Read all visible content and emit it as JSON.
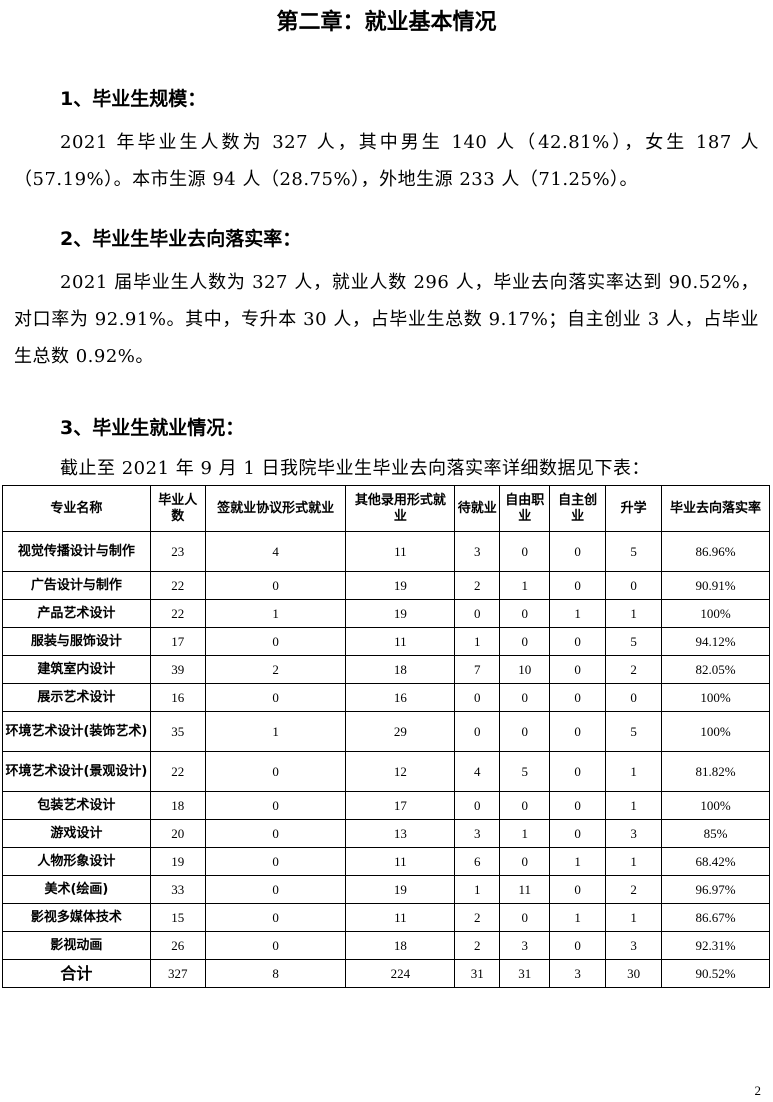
{
  "title": "第二章：就业基本情况",
  "sections": [
    {
      "heading": "1、毕业生规模：",
      "paragraph": "2021 年毕业生人数为 327 人，其中男生 140 人（42.81%），女生 187 人（57.19%）。本市生源 94 人（28.75%），外地生源 233 人（71.25%）。"
    },
    {
      "heading": "2、毕业生毕业去向落实率：",
      "paragraph": "2021 届毕业生人数为 327 人，就业人数 296 人，毕业去向落实率达到 90.52%，对口率为 92.91%。其中，专升本 30 人，占毕业生总数 9.17%；自主创业 3 人，占毕业生总数 0.92%。"
    },
    {
      "heading": "3、毕业生就业情况：",
      "paragraph": "截止至 2021 年 9 月 1 日我院毕业生毕业去向落实率详细数据见下表："
    }
  ],
  "table": {
    "headers": [
      "专业名称",
      "毕业人数",
      "签就业协议形式就业",
      "其他录用形式就业",
      "待就业",
      "自由职业",
      "自主创业",
      "升学",
      "毕业去向落实率"
    ],
    "rows": [
      [
        "视觉传播设计与制作",
        "23",
        "4",
        "11",
        "3",
        "0",
        "0",
        "5",
        "86.96%"
      ],
      [
        "广告设计与制作",
        "22",
        "0",
        "19",
        "2",
        "1",
        "0",
        "0",
        "90.91%"
      ],
      [
        "产品艺术设计",
        "22",
        "1",
        "19",
        "0",
        "0",
        "1",
        "1",
        "100%"
      ],
      [
        "服装与服饰设计",
        "17",
        "0",
        "11",
        "1",
        "0",
        "0",
        "5",
        "94.12%"
      ],
      [
        "建筑室内设计",
        "39",
        "2",
        "18",
        "7",
        "10",
        "0",
        "2",
        "82.05%"
      ],
      [
        "展示艺术设计",
        "16",
        "0",
        "16",
        "0",
        "0",
        "0",
        "0",
        "100%"
      ],
      [
        "环境艺术设计(装饰艺术)",
        "35",
        "1",
        "29",
        "0",
        "0",
        "0",
        "5",
        "100%"
      ],
      [
        "环境艺术设计(景观设计)",
        "22",
        "0",
        "12",
        "4",
        "5",
        "0",
        "1",
        "81.82%"
      ],
      [
        "包装艺术设计",
        "18",
        "0",
        "17",
        "0",
        "0",
        "0",
        "1",
        "100%"
      ],
      [
        "游戏设计",
        "20",
        "0",
        "13",
        "3",
        "1",
        "0",
        "3",
        "85%"
      ],
      [
        "人物形象设计",
        "19",
        "0",
        "11",
        "6",
        "0",
        "1",
        "1",
        "68.42%"
      ],
      [
        "美术(绘画)",
        "33",
        "0",
        "19",
        "1",
        "11",
        "0",
        "2",
        "96.97%"
      ],
      [
        "影视多媒体技术",
        "15",
        "0",
        "11",
        "2",
        "0",
        "1",
        "1",
        "86.67%"
      ],
      [
        "影视动画",
        "26",
        "0",
        "18",
        "2",
        "3",
        "0",
        "3",
        "92.31%"
      ],
      [
        "合计",
        "327",
        "8",
        "224",
        "31",
        "31",
        "3",
        "30",
        "90.52%"
      ]
    ]
  },
  "page_number": "2"
}
